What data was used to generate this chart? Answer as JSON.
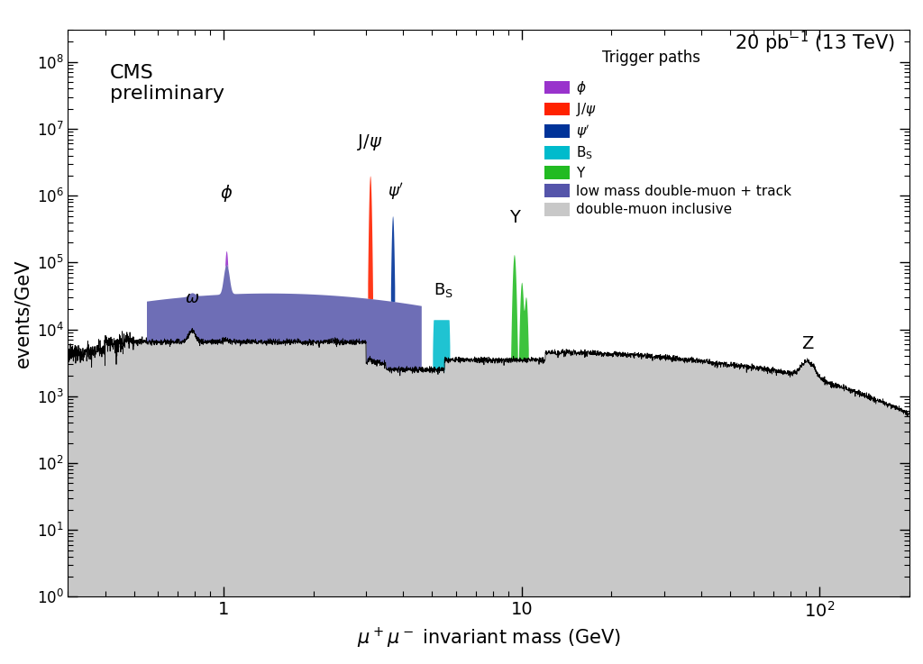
{
  "title_right": "20 pb$^{-1}$ (13 TeV)",
  "cms_label": "CMS\npreliminary",
  "xlabel": "$\\mu^+ \\mu^-$ invariant mass (GeV)",
  "ylabel": "events/GeV",
  "xlim_log": [
    0.3,
    200
  ],
  "ylim_log": [
    1,
    300000000.0
  ],
  "background_color": "#ffffff",
  "colors": {
    "phi": "#9933cc",
    "jpsi": "#ff2200",
    "psi2": "#003399",
    "bs": "#00bbcc",
    "upsilon": "#22bb22",
    "low_mass": "#5555aa",
    "inclusive": "#c8c8c8"
  }
}
